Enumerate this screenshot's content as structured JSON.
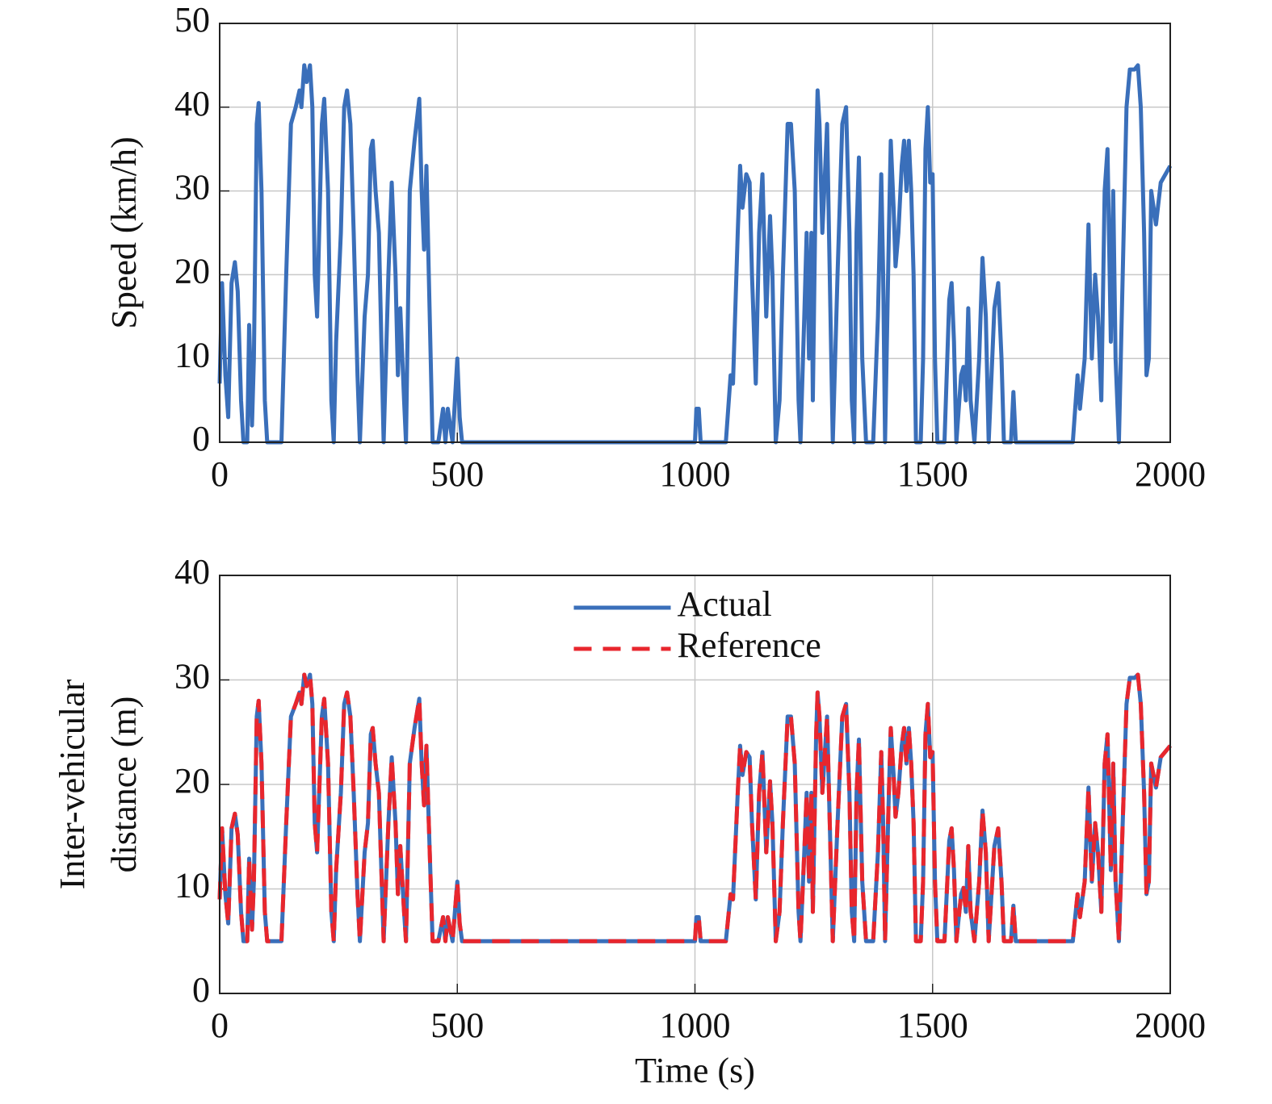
{
  "chart_data": [
    {
      "type": "line",
      "ylabel": "Speed (km/h)",
      "color": "#3a6fba",
      "x": [
        0,
        5,
        12,
        18,
        25,
        32,
        38,
        45,
        50,
        58,
        62,
        68,
        72,
        78,
        82,
        88,
        95,
        100,
        130,
        140,
        150,
        160,
        168,
        172,
        178,
        183,
        190,
        195,
        200,
        205,
        215,
        220,
        228,
        235,
        240,
        245,
        255,
        262,
        268,
        275,
        282,
        290,
        295,
        305,
        312,
        318,
        322,
        328,
        335,
        345,
        355,
        362,
        370,
        375,
        380,
        388,
        392,
        400,
        410,
        420,
        425,
        430,
        435,
        440,
        448,
        460,
        470,
        475,
        480,
        490,
        500,
        505,
        510,
        1000,
        1003,
        1008,
        1012,
        1065,
        1075,
        1080,
        1090,
        1095,
        1100,
        1108,
        1115,
        1120,
        1128,
        1135,
        1142,
        1150,
        1158,
        1163,
        1170,
        1178,
        1185,
        1195,
        1202,
        1210,
        1218,
        1222,
        1230,
        1235,
        1240,
        1245,
        1248,
        1255,
        1258,
        1262,
        1268,
        1272,
        1278,
        1282,
        1290,
        1300,
        1310,
        1318,
        1325,
        1330,
        1335,
        1340,
        1345,
        1352,
        1360,
        1375,
        1385,
        1392,
        1396,
        1400,
        1408,
        1412,
        1418,
        1422,
        1428,
        1435,
        1440,
        1445,
        1450,
        1455,
        1460,
        1465,
        1475,
        1480,
        1485,
        1490,
        1495,
        1500,
        1505,
        1510,
        1525,
        1535,
        1540,
        1545,
        1550,
        1560,
        1565,
        1570,
        1575,
        1580,
        1588,
        1598,
        1605,
        1612,
        1618,
        1630,
        1638,
        1645,
        1650,
        1665,
        1670,
        1675,
        1690,
        1795,
        1800,
        1805,
        1810,
        1820,
        1828,
        1835,
        1842,
        1848,
        1855,
        1862,
        1868,
        1875,
        1880,
        1885,
        1892,
        1900,
        1908,
        1915,
        1925,
        1932,
        1938,
        1945,
        1950,
        1955,
        1960,
        1970,
        1980,
        2000
      ],
      "values": [
        7,
        19,
        8,
        3,
        19,
        21.5,
        18,
        5,
        0,
        0,
        14,
        2,
        10,
        38,
        40.5,
        30,
        5,
        0,
        0,
        20,
        38,
        40,
        42,
        40,
        45,
        43,
        45,
        40,
        20,
        15,
        38,
        41,
        30,
        5,
        0,
        12,
        25,
        40,
        42,
        38,
        25,
        8,
        0,
        15,
        20,
        35,
        36,
        30,
        25,
        0,
        20,
        31,
        20,
        8,
        16,
        5,
        0,
        30,
        36,
        41,
        30,
        23,
        33,
        20,
        0,
        0,
        4,
        0,
        4,
        0,
        10,
        3,
        0,
        0,
        4,
        4,
        0,
        0,
        8,
        7,
        25,
        33,
        28,
        32,
        31,
        20,
        7,
        25,
        32,
        15,
        27,
        20,
        0,
        5,
        20,
        38,
        38,
        30,
        5,
        0,
        15,
        25,
        10,
        25,
        5,
        35,
        42,
        38,
        25,
        30,
        38,
        25,
        0,
        20,
        38,
        40,
        25,
        5,
        0,
        25,
        34,
        10,
        0,
        0,
        15,
        32,
        20,
        0,
        25,
        36,
        28,
        21,
        25,
        33,
        36,
        30,
        36,
        30,
        20,
        0,
        0,
        10,
        35,
        40,
        31,
        32,
        10,
        0,
        0,
        17,
        19,
        12,
        0,
        8,
        9,
        5,
        16,
        5,
        0,
        10,
        22,
        15,
        0,
        16,
        19,
        10,
        0,
        0,
        6,
        0,
        0,
        0,
        4,
        8,
        4,
        10,
        26,
        10,
        20,
        15,
        5,
        30,
        35,
        12,
        30,
        10,
        0,
        20,
        40,
        44.5,
        44.5,
        45,
        40,
        25,
        8,
        10,
        30,
        26,
        31,
        33
      ],
      "xlim": [
        0,
        2000
      ],
      "xticks": [
        0,
        500,
        1000,
        1500,
        2000
      ],
      "ylim": [
        0,
        50
      ],
      "yticks": [
        0,
        10,
        20,
        30,
        40,
        50
      ],
      "grid": true
    },
    {
      "type": "line",
      "ylabel": [
        "Inter-vehicular",
        "distance (m)"
      ],
      "xlabel": "Time (s)",
      "legend": "upper center",
      "x": [
        0,
        5,
        12,
        18,
        25,
        32,
        38,
        45,
        50,
        58,
        62,
        68,
        72,
        78,
        82,
        88,
        95,
        100,
        130,
        140,
        150,
        160,
        168,
        172,
        178,
        183,
        190,
        195,
        200,
        205,
        215,
        220,
        228,
        235,
        240,
        245,
        255,
        262,
        268,
        275,
        282,
        290,
        295,
        305,
        312,
        318,
        322,
        328,
        335,
        345,
        355,
        362,
        370,
        375,
        380,
        388,
        392,
        400,
        410,
        420,
        425,
        430,
        435,
        440,
        448,
        460,
        470,
        475,
        480,
        490,
        500,
        505,
        510,
        1000,
        1003,
        1008,
        1012,
        1065,
        1075,
        1080,
        1090,
        1095,
        1100,
        1108,
        1115,
        1120,
        1128,
        1135,
        1142,
        1150,
        1158,
        1163,
        1170,
        1178,
        1185,
        1195,
        1202,
        1210,
        1218,
        1222,
        1230,
        1235,
        1240,
        1245,
        1248,
        1255,
        1258,
        1262,
        1268,
        1272,
        1278,
        1282,
        1290,
        1300,
        1310,
        1318,
        1325,
        1330,
        1335,
        1340,
        1345,
        1352,
        1360,
        1375,
        1385,
        1392,
        1396,
        1400,
        1408,
        1412,
        1418,
        1422,
        1428,
        1435,
        1440,
        1445,
        1450,
        1455,
        1460,
        1465,
        1475,
        1480,
        1485,
        1490,
        1495,
        1500,
        1505,
        1510,
        1525,
        1535,
        1540,
        1545,
        1550,
        1560,
        1565,
        1570,
        1575,
        1580,
        1588,
        1598,
        1605,
        1612,
        1618,
        1630,
        1638,
        1645,
        1650,
        1665,
        1670,
        1675,
        1690,
        1795,
        1800,
        1805,
        1810,
        1820,
        1828,
        1835,
        1842,
        1848,
        1855,
        1862,
        1868,
        1875,
        1880,
        1885,
        1892,
        1900,
        1908,
        1915,
        1925,
        1932,
        1938,
        1945,
        1950,
        1955,
        1960,
        1970,
        1980,
        2000
      ],
      "series": [
        {
          "name": "Actual",
          "color": "#3a6fba",
          "style": "solid",
          "values": [
            9,
            15.8,
            9.5,
            6.7,
            15.8,
            17.2,
            15.2,
            7.8,
            5,
            5,
            12.9,
            6.1,
            10.7,
            26.5,
            28,
            22,
            7.8,
            5,
            5,
            16.3,
            26.5,
            27.7,
            28.8,
            27.7,
            30.5,
            29.4,
            30.5,
            27.7,
            16.3,
            13.5,
            26.5,
            28.2,
            22,
            7.8,
            5,
            11.8,
            19.2,
            27.7,
            28.8,
            26.5,
            19.2,
            9.5,
            5,
            13.5,
            16.3,
            24.8,
            25.4,
            22,
            19.2,
            5,
            16.3,
            22.6,
            16.3,
            9.5,
            14.1,
            7.8,
            5,
            22,
            25.4,
            28.2,
            22,
            18,
            23.7,
            16.3,
            5,
            5,
            7.3,
            5,
            7.3,
            5,
            10.7,
            6.7,
            5,
            5,
            7.3,
            7.3,
            5,
            5,
            9.5,
            9,
            19.2,
            23.7,
            20.9,
            23.1,
            22.6,
            16.3,
            9,
            19.2,
            23.1,
            13.5,
            20.3,
            16.3,
            5,
            7.8,
            16.3,
            26.5,
            26.5,
            22,
            7.8,
            5,
            13.5,
            19.2,
            10.7,
            19.2,
            7.8,
            24.8,
            28.8,
            26.5,
            19.2,
            22,
            26.5,
            19.2,
            5,
            16.3,
            26.5,
            27.7,
            19.2,
            7.8,
            5,
            19.2,
            24.3,
            10.7,
            5,
            5,
            13.5,
            23.1,
            16.3,
            5,
            19.2,
            25.4,
            20.9,
            16.9,
            19.2,
            23.7,
            25.4,
            22,
            25.4,
            22,
            16.3,
            5,
            5,
            10.7,
            24.8,
            27.7,
            22.6,
            23.1,
            10.7,
            5,
            5,
            14.6,
            15.8,
            11.8,
            5,
            9.5,
            10.1,
            7.8,
            14.1,
            7.8,
            5,
            10.7,
            17.5,
            13.5,
            5,
            14.1,
            15.8,
            10.7,
            5,
            5,
            8.4,
            5,
            5,
            5,
            7.3,
            9.5,
            7.3,
            10.7,
            19.7,
            10.7,
            16.3,
            13.5,
            7.8,
            22,
            24.8,
            11.8,
            22,
            10.7,
            5,
            16.3,
            27.7,
            30.2,
            30.2,
            30.5,
            27.7,
            19.2,
            9.5,
            10.7,
            22,
            19.7,
            22.6,
            23.7
          ]
        },
        {
          "name": "Reference",
          "color": "#e8262d",
          "style": "dashed",
          "values": [
            9,
            15.8,
            9.5,
            6.7,
            15.8,
            17.2,
            15.2,
            7.8,
            5,
            5,
            12.9,
            6.1,
            10.7,
            26.5,
            28,
            22,
            7.8,
            5,
            5,
            16.3,
            26.5,
            27.7,
            28.8,
            27.7,
            30.5,
            29.4,
            30.5,
            27.7,
            16.3,
            13.5,
            26.5,
            28.2,
            22,
            7.8,
            5,
            11.8,
            19.2,
            27.7,
            28.8,
            26.5,
            19.2,
            9.5,
            5,
            13.5,
            16.3,
            24.8,
            25.4,
            22,
            19.2,
            5,
            16.3,
            22.6,
            16.3,
            9.5,
            14.1,
            7.8,
            5,
            22,
            25.4,
            28.2,
            22,
            18,
            23.7,
            16.3,
            5,
            5,
            7.3,
            5,
            7.3,
            5,
            10.7,
            6.7,
            5,
            5,
            7.3,
            7.3,
            5,
            5,
            9.5,
            9,
            19.2,
            23.7,
            20.9,
            23.1,
            22.6,
            16.3,
            9,
            19.2,
            23.1,
            13.5,
            20.3,
            16.3,
            5,
            7.8,
            16.3,
            26.5,
            26.5,
            22,
            7.8,
            5,
            13.5,
            19.2,
            10.7,
            19.2,
            7.8,
            24.8,
            28.8,
            26.5,
            19.2,
            22,
            26.5,
            19.2,
            5,
            16.3,
            26.5,
            27.7,
            19.2,
            7.8,
            5,
            19.2,
            24.3,
            10.7,
            5,
            5,
            13.5,
            23.1,
            16.3,
            5,
            19.2,
            25.4,
            20.9,
            16.9,
            19.2,
            23.7,
            25.4,
            22,
            25.4,
            22,
            16.3,
            5,
            5,
            10.7,
            24.8,
            27.7,
            22.6,
            23.1,
            10.7,
            5,
            5,
            14.6,
            15.8,
            11.8,
            5,
            9.5,
            10.1,
            7.8,
            14.1,
            7.8,
            5,
            10.7,
            17.5,
            13.5,
            5,
            14.1,
            15.8,
            10.7,
            5,
            5,
            8.4,
            5,
            5,
            5,
            7.3,
            9.5,
            7.3,
            10.7,
            19.7,
            10.7,
            16.3,
            13.5,
            7.8,
            22,
            24.8,
            11.8,
            22,
            10.7,
            5,
            16.3,
            27.7,
            30.2,
            30.2,
            30.5,
            27.7,
            19.2,
            9.5,
            10.7,
            22,
            19.7,
            22.6,
            23.7
          ]
        }
      ],
      "xlim": [
        0,
        2000
      ],
      "xticks": [
        0,
        500,
        1000,
        1500,
        2000
      ],
      "ylim": [
        0,
        40
      ],
      "yticks": [
        0,
        10,
        20,
        30,
        40
      ],
      "grid": true
    }
  ]
}
